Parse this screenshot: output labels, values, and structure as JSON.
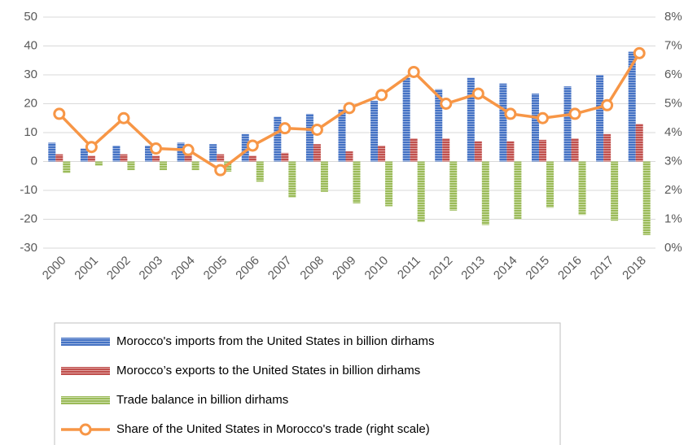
{
  "chart_data": {
    "type": "bar_line",
    "categories": [
      "2000",
      "2001",
      "2002",
      "2003",
      "2004",
      "2005",
      "2006",
      "2007",
      "2008",
      "2009",
      "2010",
      "2011",
      "2012",
      "2013",
      "2014",
      "2015",
      "2016",
      "2017",
      "2018"
    ],
    "series": [
      {
        "name": "Morocco's imports from the United States in billion dirhams",
        "color": "#4472c4",
        "values": [
          6.5,
          4.5,
          5.5,
          5.5,
          6.5,
          6,
          9.5,
          15.5,
          16.5,
          18,
          21,
          29,
          25,
          29,
          27,
          23.5,
          26,
          30,
          38
        ]
      },
      {
        "name": "Morocco’s exports to the United States in billion dirhams",
        "color": "#c0504d",
        "values": [
          2.5,
          2,
          2.5,
          2,
          2.5,
          2.5,
          2,
          3,
          6,
          3.5,
          5.5,
          8,
          8,
          7,
          7,
          7.5,
          8,
          9.5,
          13
        ]
      },
      {
        "name": "Trade balance in billion dirhams",
        "color": "#9bbb59",
        "values": [
          -4,
          -1.5,
          -3,
          -3,
          -3,
          -3.5,
          -7,
          -12.5,
          -10.5,
          -14.5,
          -15.5,
          -21,
          -17,
          -22,
          -20,
          -16,
          -18.5,
          -20.5,
          -25.5
        ]
      },
      {
        "name": "Share of the United States in Morocco's trade (right scale)",
        "color": "#f79646",
        "axis": "y2",
        "values": [
          4.65,
          3.5,
          4.5,
          3.45,
          3.4,
          2.7,
          3.55,
          4.15,
          4.1,
          4.85,
          5.3,
          6.1,
          5.0,
          5.35,
          4.65,
          4.5,
          4.65,
          4.95,
          6.75
        ]
      }
    ],
    "ylim": [
      -30,
      50
    ],
    "yticks": [
      -30,
      -20,
      -10,
      0,
      10,
      20,
      30,
      40,
      50
    ],
    "y2lim": [
      0,
      8
    ],
    "y2ticks": [
      {
        "value": 0,
        "label": "0%"
      },
      {
        "value": 1,
        "label": "1%"
      },
      {
        "value": 2,
        "label": "2%"
      },
      {
        "value": 3,
        "label": "3%"
      },
      {
        "value": 4,
        "label": "4%"
      },
      {
        "value": 5,
        "label": "5%"
      },
      {
        "value": 6,
        "label": "6%"
      },
      {
        "value": 7,
        "label": "7%"
      },
      {
        "value": 8,
        "label": "8%"
      }
    ],
    "grid": true
  }
}
